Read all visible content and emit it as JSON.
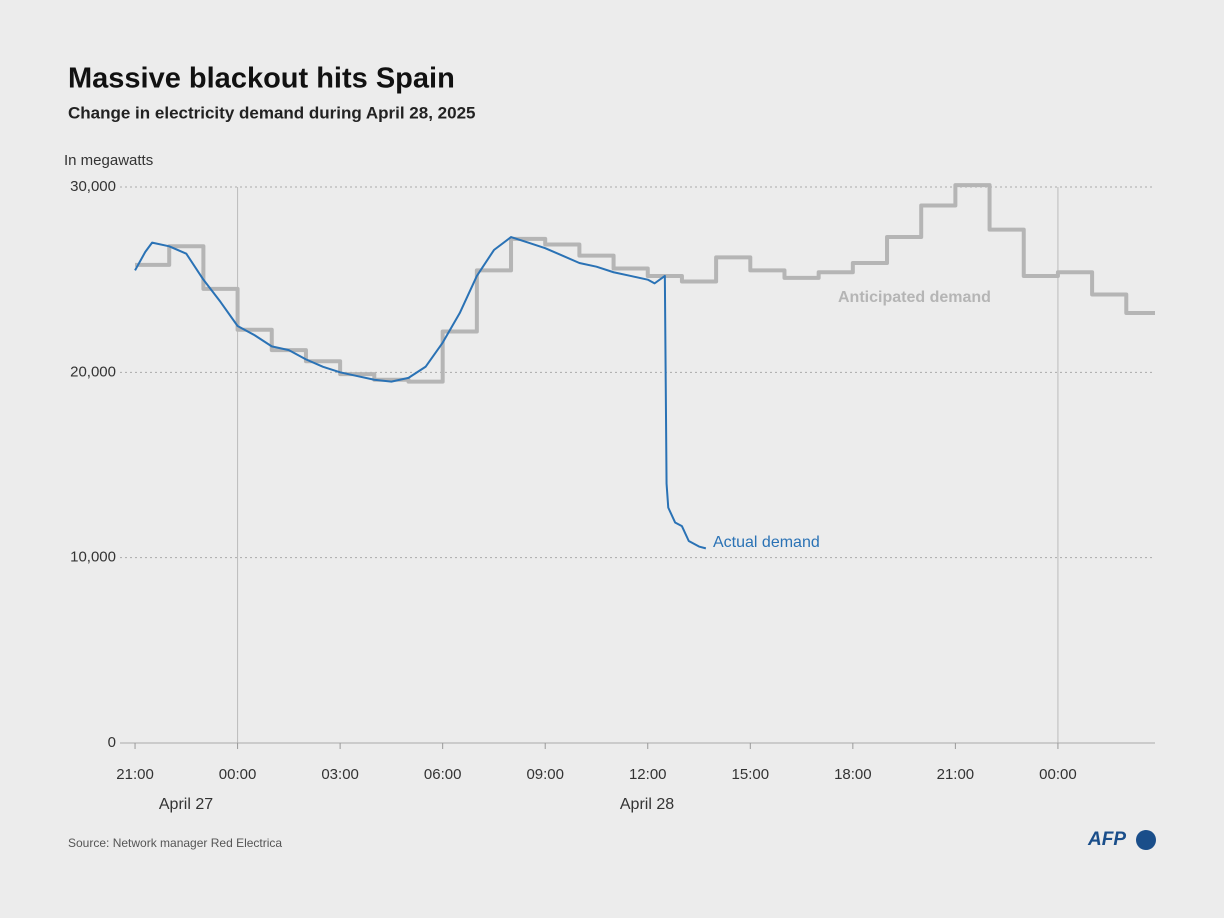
{
  "chart_data": {
    "type": "line",
    "title": "Massive blackout hits Spain",
    "subtitle": "Change in electricity demand during April 28, 2025",
    "y_axis_label": "In megawatts",
    "source": "Source: Network manager Red Electrica",
    "logo": "AFP",
    "date_labels": [
      "April 27",
      "April 28"
    ],
    "xlim": [
      -0.44,
      29.84
    ],
    "ylim": [
      0,
      30000
    ],
    "xticks": [
      {
        "value": 0,
        "label": "21:00"
      },
      {
        "value": 3,
        "label": "00:00"
      },
      {
        "value": 6,
        "label": "03:00"
      },
      {
        "value": 9,
        "label": "06:00"
      },
      {
        "value": 12,
        "label": "09:00"
      },
      {
        "value": 15,
        "label": "12:00"
      },
      {
        "value": 18,
        "label": "15:00"
      },
      {
        "value": 21,
        "label": "18:00"
      },
      {
        "value": 24,
        "label": "21:00"
      },
      {
        "value": 27,
        "label": "00:00"
      }
    ],
    "yticks": [
      0,
      {
        "value": 10000,
        "label": "10,000"
      },
      {
        "value": 20000,
        "label": "20,000"
      },
      {
        "value": 30000,
        "label": "30,000"
      }
    ],
    "vlines": [
      3,
      27
    ],
    "grid": true,
    "series": [
      {
        "name": "Anticipated demand",
        "color": "#b5b5b5",
        "step": true,
        "x": [
          0,
          1,
          2,
          3,
          4,
          5,
          6,
          7,
          8,
          9,
          10,
          11,
          12,
          13,
          14,
          15,
          16,
          17,
          18,
          19,
          20,
          21,
          22,
          23,
          24,
          25,
          26,
          27,
          28,
          29,
          29.84
        ],
        "values": [
          25800,
          26800,
          24500,
          22300,
          21200,
          20600,
          19900,
          19600,
          19500,
          22200,
          25500,
          27200,
          26900,
          26300,
          25600,
          25200,
          24900,
          26200,
          25500,
          25100,
          25400,
          25900,
          27300,
          29000,
          30100,
          27700,
          25200,
          25400,
          24200,
          23200,
          23200
        ]
      },
      {
        "name": "Actual demand",
        "color": "#2a72b5",
        "step": false,
        "x": [
          0,
          0.3,
          0.5,
          1,
          1.5,
          2,
          2.5,
          3,
          3.5,
          4,
          4.5,
          5,
          5.5,
          6,
          6.5,
          7,
          7.5,
          8,
          8.5,
          9,
          9.5,
          10,
          10.5,
          11,
          11.5,
          12,
          12.5,
          13,
          13.5,
          14,
          14.5,
          15,
          15.2,
          15.5,
          15.55,
          15.6,
          15.8,
          16,
          16.2,
          16.5,
          16.7
        ],
        "values": [
          25500,
          26500,
          27000,
          26800,
          26400,
          25000,
          23800,
          22500,
          22000,
          21400,
          21200,
          20700,
          20300,
          20000,
          19800,
          19600,
          19500,
          19700,
          20300,
          21600,
          23200,
          25200,
          26600,
          27300,
          27000,
          26700,
          26300,
          25900,
          25700,
          25400,
          25200,
          25000,
          24800,
          25200,
          14000,
          12700,
          11900,
          11700,
          10900,
          10600,
          10500
        ]
      }
    ]
  }
}
